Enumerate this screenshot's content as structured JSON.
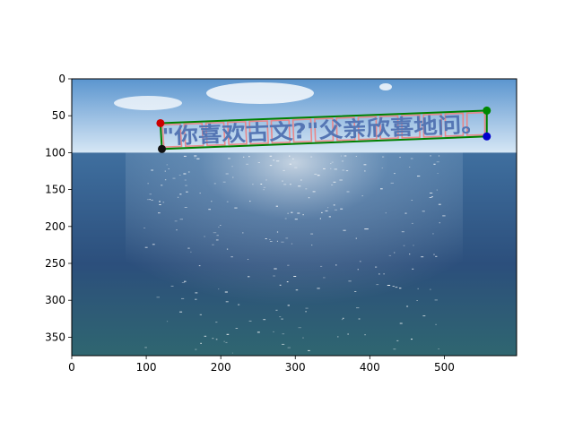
{
  "chart_data": {
    "type": "image-annotation",
    "xlim": [
      0,
      597
    ],
    "ylim": [
      375,
      0
    ],
    "x_ticks": [
      0,
      100,
      200,
      300,
      400,
      500
    ],
    "y_ticks": [
      0,
      50,
      100,
      150,
      200,
      250,
      300,
      350
    ],
    "overlay_text": "\"你喜欢古文?\"父亲欣喜地问。",
    "keypoints": [
      {
        "name": "top-left",
        "x": 119,
        "y": 60,
        "color": "#cc0000"
      },
      {
        "name": "top-right",
        "x": 557,
        "y": 43,
        "color": "#008800"
      },
      {
        "name": "bottom-right",
        "x": 557,
        "y": 78,
        "color": "#0000cc"
      },
      {
        "name": "bottom-left",
        "x": 121,
        "y": 95,
        "color": "#111111"
      }
    ],
    "quad_color": "#008000",
    "char_box_color": "#f08080",
    "char_box_count": 15,
    "horizon_y": 100,
    "colors": {
      "sky_top": "#5b95cf",
      "sky_bottom": "#d6e7f5",
      "sea_top": "#3f6f9f",
      "sea_mid": "#2c4f7c",
      "sea_bottom": "#2f6670"
    }
  }
}
